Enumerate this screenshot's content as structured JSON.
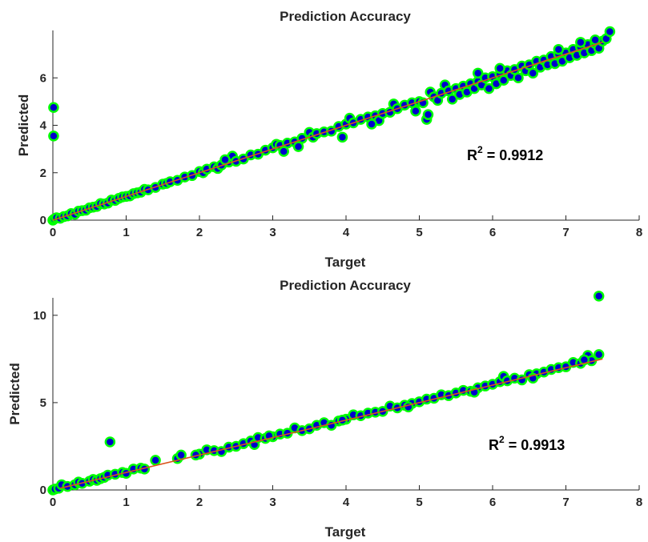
{
  "chart_data": [
    {
      "type": "scatter",
      "title": "Prediction Accuracy",
      "xlabel": "Target",
      "ylabel": "Predicted",
      "xlim": [
        0,
        8
      ],
      "ylim": [
        0,
        8
      ],
      "xticks": [
        "0",
        "1",
        "2",
        "3",
        "4",
        "5",
        "6",
        "7",
        "8"
      ],
      "yticks": [
        {
          "v": 0,
          "label": "0"
        },
        {
          "v": 2,
          "label": "2"
        },
        {
          "v": 4,
          "label": "4"
        },
        {
          "v": 6,
          "label": "6"
        }
      ],
      "annotation": {
        "base": "R",
        "sup": "2",
        "rest": " = 0.9912"
      },
      "fit_line": {
        "x": [
          0,
          7.5
        ],
        "y": [
          0,
          7.5
        ],
        "color": "#d95319"
      },
      "marker": {
        "fill": "#0000cc",
        "edge": "#00ff00"
      },
      "points": [
        [
          0.0,
          0.0
        ],
        [
          0.02,
          0.05
        ],
        [
          0.01,
          4.75
        ],
        [
          0.01,
          3.55
        ],
        [
          0.05,
          0.1
        ],
        [
          0.1,
          0.08
        ],
        [
          0.15,
          0.15
        ],
        [
          0.2,
          0.18
        ],
        [
          0.25,
          0.28
        ],
        [
          0.3,
          0.25
        ],
        [
          0.35,
          0.38
        ],
        [
          0.4,
          0.4
        ],
        [
          0.45,
          0.42
        ],
        [
          0.5,
          0.52
        ],
        [
          0.55,
          0.55
        ],
        [
          0.6,
          0.58
        ],
        [
          0.65,
          0.7
        ],
        [
          0.7,
          0.68
        ],
        [
          0.75,
          0.72
        ],
        [
          0.8,
          0.85
        ],
        [
          0.85,
          0.83
        ],
        [
          0.9,
          0.92
        ],
        [
          0.95,
          0.98
        ],
        [
          1.0,
          1.0
        ],
        [
          1.05,
          1.02
        ],
        [
          1.1,
          1.12
        ],
        [
          1.15,
          1.15
        ],
        [
          1.2,
          1.18
        ],
        [
          1.25,
          1.3
        ],
        [
          1.3,
          1.28
        ],
        [
          1.4,
          1.38
        ],
        [
          1.5,
          1.52
        ],
        [
          1.55,
          1.55
        ],
        [
          1.6,
          1.62
        ],
        [
          1.7,
          1.68
        ],
        [
          1.8,
          1.82
        ],
        [
          1.9,
          1.88
        ],
        [
          2.0,
          2.05
        ],
        [
          2.05,
          2.0
        ],
        [
          2.1,
          2.15
        ],
        [
          2.2,
          2.25
        ],
        [
          2.25,
          2.18
        ],
        [
          2.3,
          2.32
        ],
        [
          2.4,
          2.45
        ],
        [
          2.45,
          2.7
        ],
        [
          2.5,
          2.48
        ],
        [
          2.6,
          2.58
        ],
        [
          2.7,
          2.75
        ],
        [
          2.8,
          2.78
        ],
        [
          2.9,
          2.95
        ],
        [
          3.0,
          3.05
        ],
        [
          3.05,
          3.2
        ],
        [
          3.1,
          3.15
        ],
        [
          3.15,
          2.9
        ],
        [
          3.2,
          3.25
        ],
        [
          3.3,
          3.3
        ],
        [
          3.4,
          3.45
        ],
        [
          3.5,
          3.7
        ],
        [
          3.55,
          3.5
        ],
        [
          3.6,
          3.65
        ],
        [
          3.7,
          3.72
        ],
        [
          3.8,
          3.75
        ],
        [
          3.9,
          3.95
        ],
        [
          3.95,
          3.5
        ],
        [
          4.0,
          4.05
        ],
        [
          4.05,
          4.3
        ],
        [
          4.1,
          4.1
        ],
        [
          4.2,
          4.25
        ],
        [
          4.3,
          4.35
        ],
        [
          4.4,
          4.4
        ],
        [
          4.45,
          4.2
        ],
        [
          4.5,
          4.5
        ],
        [
          4.6,
          4.55
        ],
        [
          4.65,
          4.9
        ],
        [
          4.7,
          4.7
        ],
        [
          4.8,
          4.85
        ],
        [
          4.9,
          4.95
        ],
        [
          4.95,
          4.6
        ],
        [
          5.0,
          5.0
        ],
        [
          5.05,
          4.95
        ],
        [
          5.1,
          4.25
        ],
        [
          5.12,
          4.45
        ],
        [
          5.15,
          5.4
        ],
        [
          5.2,
          5.2
        ],
        [
          5.25,
          5.05
        ],
        [
          5.3,
          5.35
        ],
        [
          5.35,
          5.7
        ],
        [
          5.4,
          5.45
        ],
        [
          5.45,
          5.1
        ],
        [
          5.5,
          5.55
        ],
        [
          5.55,
          5.3
        ],
        [
          5.6,
          5.65
        ],
        [
          5.65,
          5.4
        ],
        [
          5.7,
          5.75
        ],
        [
          5.75,
          5.55
        ],
        [
          5.8,
          5.85
        ],
        [
          5.85,
          5.7
        ],
        [
          5.9,
          6.0
        ],
        [
          5.95,
          5.55
        ],
        [
          6.0,
          6.05
        ],
        [
          6.05,
          5.75
        ],
        [
          6.1,
          6.15
        ],
        [
          6.15,
          5.9
        ],
        [
          6.2,
          6.3
        ],
        [
          6.25,
          6.1
        ],
        [
          6.3,
          6.35
        ],
        [
          6.35,
          6.0
        ],
        [
          6.4,
          6.5
        ],
        [
          6.45,
          6.3
        ],
        [
          6.5,
          6.55
        ],
        [
          6.55,
          6.2
        ],
        [
          6.6,
          6.7
        ],
        [
          6.65,
          6.45
        ],
        [
          6.7,
          6.75
        ],
        [
          6.75,
          6.55
        ],
        [
          6.8,
          6.9
        ],
        [
          6.85,
          6.6
        ],
        [
          6.9,
          7.0
        ],
        [
          6.95,
          6.7
        ],
        [
          7.0,
          7.05
        ],
        [
          7.05,
          6.85
        ],
        [
          7.1,
          7.2
        ],
        [
          7.15,
          6.95
        ],
        [
          7.2,
          7.3
        ],
        [
          7.25,
          7.05
        ],
        [
          7.3,
          7.4
        ],
        [
          7.35,
          7.15
        ],
        [
          7.4,
          7.45
        ],
        [
          7.45,
          7.25
        ],
        [
          7.5,
          7.55
        ],
        [
          7.55,
          7.65
        ],
        [
          7.6,
          7.95
        ],
        [
          7.4,
          7.6
        ],
        [
          7.2,
          7.5
        ],
        [
          6.9,
          7.2
        ],
        [
          6.1,
          6.4
        ],
        [
          5.8,
          6.2
        ],
        [
          4.35,
          4.05
        ],
        [
          3.35,
          3.1
        ],
        [
          2.35,
          2.55
        ]
      ]
    },
    {
      "type": "scatter",
      "title": "Prediction Accuracy",
      "xlabel": "Target",
      "ylabel": "Predicted",
      "xlim": [
        0,
        8
      ],
      "ylim": [
        0,
        11
      ],
      "xticks": [
        "0",
        "1",
        "2",
        "3",
        "4",
        "5",
        "6",
        "7",
        "8"
      ],
      "yticks": [
        {
          "v": 0,
          "label": "0"
        },
        {
          "v": 5,
          "label": "5"
        },
        {
          "v": 10,
          "label": "10"
        }
      ],
      "annotation": {
        "base": "R",
        "sup": "2",
        "rest": " = 0.9913"
      },
      "fit_line": {
        "x": [
          0.1,
          7.5
        ],
        "y": [
          0.1,
          7.5
        ],
        "color": "#d95319"
      },
      "marker": {
        "fill": "#0000cc",
        "edge": "#00ff00"
      },
      "points": [
        [
          0.0,
          0.0
        ],
        [
          0.03,
          0.05
        ],
        [
          0.08,
          0.1
        ],
        [
          0.12,
          0.3
        ],
        [
          0.2,
          0.2
        ],
        [
          0.3,
          0.3
        ],
        [
          0.35,
          0.45
        ],
        [
          0.4,
          0.38
        ],
        [
          0.5,
          0.5
        ],
        [
          0.55,
          0.6
        ],
        [
          0.6,
          0.55
        ],
        [
          0.65,
          0.65
        ],
        [
          0.7,
          0.72
        ],
        [
          0.75,
          0.85
        ],
        [
          0.78,
          2.75
        ],
        [
          0.85,
          0.9
        ],
        [
          0.95,
          1.0
        ],
        [
          1.0,
          0.95
        ],
        [
          1.1,
          1.2
        ],
        [
          1.2,
          1.25
        ],
        [
          1.25,
          1.2
        ],
        [
          1.4,
          1.7
        ],
        [
          1.7,
          1.8
        ],
        [
          1.75,
          2.0
        ],
        [
          2.0,
          2.05
        ],
        [
          2.1,
          2.3
        ],
        [
          2.2,
          2.25
        ],
        [
          2.3,
          2.2
        ],
        [
          2.4,
          2.45
        ],
        [
          2.5,
          2.5
        ],
        [
          2.6,
          2.65
        ],
        [
          2.7,
          2.8
        ],
        [
          2.75,
          2.6
        ],
        [
          2.8,
          3.0
        ],
        [
          2.9,
          2.95
        ],
        [
          3.0,
          3.05
        ],
        [
          3.1,
          3.2
        ],
        [
          3.2,
          3.25
        ],
        [
          3.3,
          3.55
        ],
        [
          3.4,
          3.4
        ],
        [
          3.5,
          3.5
        ],
        [
          3.6,
          3.7
        ],
        [
          3.7,
          3.85
        ],
        [
          3.8,
          3.7
        ],
        [
          3.9,
          3.95
        ],
        [
          4.0,
          4.05
        ],
        [
          4.1,
          4.3
        ],
        [
          4.2,
          4.25
        ],
        [
          4.3,
          4.4
        ],
        [
          4.4,
          4.45
        ],
        [
          4.5,
          4.5
        ],
        [
          4.6,
          4.8
        ],
        [
          4.7,
          4.7
        ],
        [
          4.8,
          4.85
        ],
        [
          4.9,
          4.95
        ],
        [
          5.0,
          5.05
        ],
        [
          5.1,
          5.2
        ],
        [
          5.2,
          5.25
        ],
        [
          5.3,
          5.45
        ],
        [
          5.4,
          5.4
        ],
        [
          5.5,
          5.55
        ],
        [
          5.6,
          5.7
        ],
        [
          5.7,
          5.65
        ],
        [
          5.8,
          5.85
        ],
        [
          5.9,
          5.95
        ],
        [
          6.0,
          6.05
        ],
        [
          6.1,
          6.2
        ],
        [
          6.15,
          6.5
        ],
        [
          6.2,
          6.25
        ],
        [
          6.3,
          6.4
        ],
        [
          6.4,
          6.3
        ],
        [
          6.5,
          6.6
        ],
        [
          6.6,
          6.65
        ],
        [
          6.7,
          6.75
        ],
        [
          6.8,
          6.9
        ],
        [
          6.9,
          7.0
        ],
        [
          7.0,
          7.05
        ],
        [
          7.1,
          7.3
        ],
        [
          7.2,
          7.25
        ],
        [
          7.3,
          7.7
        ],
        [
          7.35,
          7.4
        ],
        [
          7.45,
          7.75
        ],
        [
          7.45,
          11.1
        ],
        [
          7.25,
          7.45
        ],
        [
          6.55,
          6.4
        ],
        [
          5.75,
          5.6
        ],
        [
          4.85,
          4.75
        ],
        [
          3.95,
          4.0
        ],
        [
          2.95,
          3.1
        ],
        [
          1.95,
          2.0
        ]
      ]
    }
  ]
}
